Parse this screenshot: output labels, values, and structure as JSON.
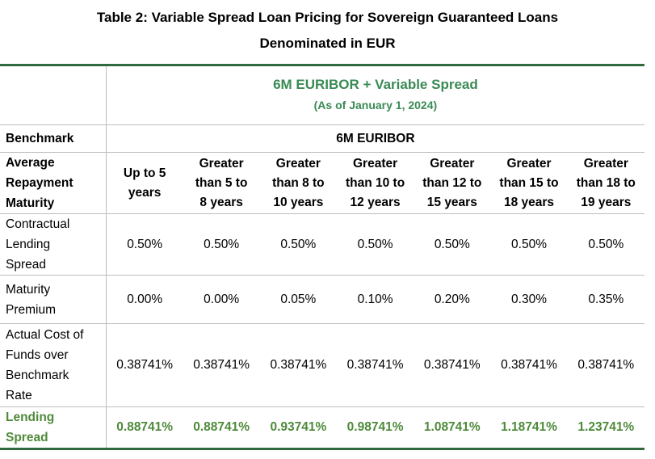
{
  "title": {
    "line1": "Table 2: Variable Spread Loan Pricing for Sovereign Guaranteed Loans",
    "line2": "Denominated in EUR"
  },
  "header": {
    "main": "6M EURIBOR + Variable Spread",
    "sub": "(As of January 1, 2024)"
  },
  "benchmark": {
    "label": "Benchmark",
    "value": "6M EURIBOR"
  },
  "maturity": {
    "label": "Average\nRepayment\nMaturity",
    "columns": [
      "Up to 5\nyears",
      "Greater\nthan 5 to\n8 years",
      "Greater\nthan 8 to\n10 years",
      "Greater\nthan 10 to\n12 years",
      "Greater\nthan 12 to\n15 years",
      "Greater\nthan 15 to\n18 years",
      "Greater\nthan 18 to\n19 years"
    ]
  },
  "rows": [
    {
      "label": "Contractual\nLending\nSpread",
      "values": [
        "0.50%",
        "0.50%",
        "0.50%",
        "0.50%",
        "0.50%",
        "0.50%",
        "0.50%"
      ]
    },
    {
      "label": "Maturity\nPremium",
      "values": [
        "0.00%",
        "0.00%",
        "0.05%",
        "0.10%",
        "0.20%",
        "0.30%",
        "0.35%"
      ]
    },
    {
      "label": "Actual Cost of\nFunds over\nBenchmark\nRate",
      "values": [
        "0.38741%",
        "0.38741%",
        "0.38741%",
        "0.38741%",
        "0.38741%",
        "0.38741%",
        "0.38741%"
      ]
    }
  ],
  "lending_spread": {
    "label": "Lending\nSpread",
    "values": [
      "0.88741%",
      "0.88741%",
      "0.93741%",
      "0.98741%",
      "1.08741%",
      "1.18741%",
      "1.23741%"
    ]
  },
  "colors": {
    "accent_green": "#4e8a3a",
    "header_green": "#3a8a55",
    "rule_green": "#2f6a3e"
  }
}
